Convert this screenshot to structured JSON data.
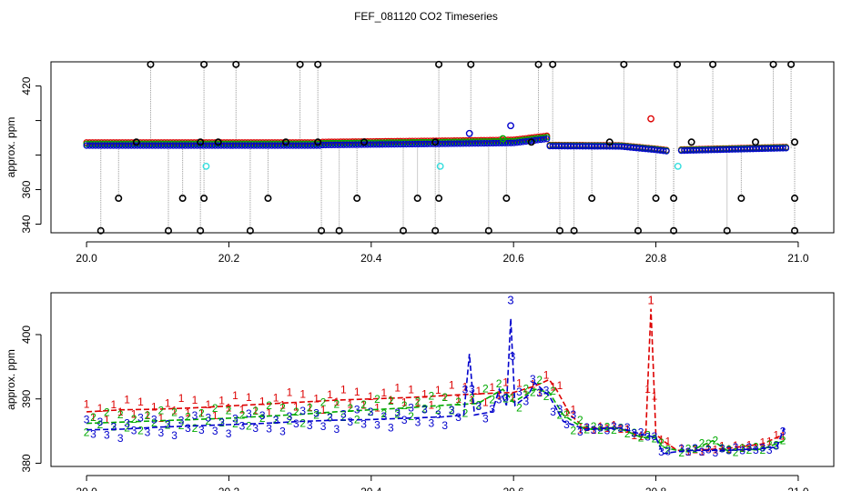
{
  "title": "FEF_081120  CO2 Timeseries",
  "colors": {
    "series1": "#dd0000",
    "series2": "#00aa00",
    "series3": "#0000cc",
    "outlier": "#000000",
    "flagged": "#33dddd",
    "line": "#999999"
  },
  "chart_data": [
    {
      "type": "scatter",
      "ylabel": "approx. ppm",
      "xlim": [
        19.95,
        21.05
      ],
      "ylim": [
        335,
        434
      ],
      "xticks": [
        "20.0",
        "20.2",
        "20.4",
        "20.6",
        "20.8",
        "21.0"
      ],
      "xtick_values": [
        20.0,
        20.2,
        20.4,
        20.6,
        20.8,
        21.0
      ],
      "yticks": [
        "340",
        "360",
        "380",
        "400",
        "420"
      ],
      "ytick_values": [
        340,
        360,
        380,
        400,
        420
      ],
      "ytick_labels_shown": [
        "340",
        "360",
        "",
        "",
        "420"
      ],
      "baseline_segments": [
        {
          "x": [
            20.0,
            20.33
          ],
          "y": [
            385.5,
            385.5
          ]
        },
        {
          "x": [
            20.33,
            20.5
          ],
          "y": [
            385.8,
            386.5
          ]
        },
        {
          "x": [
            20.5,
            20.6
          ],
          "y": [
            386.5,
            387.0
          ]
        },
        {
          "x": [
            20.6,
            20.65
          ],
          "y": [
            387.0,
            389.5
          ]
        },
        {
          "x": [
            20.65,
            20.75
          ],
          "y": [
            385.2,
            385.0
          ]
        },
        {
          "x": [
            20.75,
            20.8
          ],
          "y": [
            385.0,
            383.0
          ]
        },
        {
          "x": [
            20.8,
            20.82
          ],
          "y": [
            383.0,
            382.0
          ]
        },
        {
          "x": [
            20.83,
            20.98
          ],
          "y": [
            382.5,
            384.0
          ]
        }
      ],
      "outlier_high": [
        20.09,
        20.165,
        20.21,
        20.3,
        20.325,
        20.495,
        20.54,
        20.635,
        20.655,
        20.755,
        20.83,
        20.88,
        20.965,
        20.99
      ],
      "outlier_low": [
        20.02,
        20.115,
        20.16,
        20.23,
        20.33,
        20.355,
        20.445,
        20.49,
        20.565,
        20.665,
        20.685,
        20.775,
        20.825,
        20.9,
        20.995
      ],
      "outlier_mid_low": [
        20.045,
        20.135,
        20.165,
        20.255,
        20.38,
        20.465,
        20.495,
        20.59,
        20.71,
        20.8,
        20.825,
        20.92,
        20.995
      ],
      "outlier_mid_high": [
        20.07,
        20.16,
        20.185,
        20.28,
        20.325,
        20.39,
        20.49,
        20.625,
        20.735,
        20.85,
        20.94,
        20.995
      ],
      "colored_points": [
        {
          "series": 3,
          "x": 20.538,
          "y": 392.5
        },
        {
          "series": 3,
          "x": 20.596,
          "y": 397
        },
        {
          "series": 2,
          "x": 20.585,
          "y": 389.5
        },
        {
          "series": 1,
          "x": 20.793,
          "y": 401
        },
        {
          "series": 4,
          "x": 20.168,
          "y": 373.5
        },
        {
          "series": 4,
          "x": 20.497,
          "y": 373.5
        },
        {
          "series": 4,
          "x": 20.831,
          "y": 373.5
        }
      ]
    },
    {
      "type": "line",
      "ylabel": "approx. ppm",
      "xlim": [
        19.95,
        21.05
      ],
      "ylim": [
        379.5,
        406.5
      ],
      "xticks": [
        "20.0",
        "20.2",
        "20.4",
        "20.6",
        "20.8",
        "21.0"
      ],
      "xtick_values": [
        20.0,
        20.2,
        20.4,
        20.6,
        20.8,
        21.0
      ],
      "yticks": [
        "380",
        "390",
        "400"
      ],
      "ytick_values": [
        380,
        390,
        400
      ],
      "x_range": [
        20.0,
        20.98
      ],
      "series": [
        {
          "marker": "1",
          "points": [
            [
              20.0,
              388.0
            ],
            [
              20.05,
              388.3
            ],
            [
              20.1,
              388.4
            ],
            [
              20.15,
              388.6
            ],
            [
              20.2,
              388.9
            ],
            [
              20.25,
              389.2
            ],
            [
              20.3,
              389.5
            ],
            [
              20.35,
              389.8
            ],
            [
              20.4,
              390.0
            ],
            [
              20.45,
              390.2
            ],
            [
              20.5,
              390.5
            ],
            [
              20.55,
              390.8
            ],
            [
              20.6,
              391.0
            ],
            [
              20.63,
              392.0
            ],
            [
              20.65,
              393.0
            ],
            [
              20.66,
              391.5
            ],
            [
              20.68,
              387.5
            ],
            [
              20.7,
              385.5
            ],
            [
              20.75,
              385.5
            ],
            [
              20.78,
              384.0
            ],
            [
              20.786,
              385.0
            ],
            [
              20.79,
              396.0
            ],
            [
              20.793,
              404.0
            ],
            [
              20.796,
              396.0
            ],
            [
              20.8,
              384.5
            ],
            [
              20.81,
              383.5
            ],
            [
              20.83,
              382.0
            ],
            [
              20.85,
              382.0
            ],
            [
              20.9,
              382.3
            ],
            [
              20.95,
              383.0
            ],
            [
              20.98,
              384.5
            ]
          ]
        },
        {
          "marker": "2",
          "points": [
            [
              20.0,
              386.2
            ],
            [
              20.05,
              386.4
            ],
            [
              20.1,
              386.6
            ],
            [
              20.15,
              386.8
            ],
            [
              20.2,
              387.0
            ],
            [
              20.25,
              387.3
            ],
            [
              20.3,
              387.6
            ],
            [
              20.35,
              388.0
            ],
            [
              20.4,
              388.3
            ],
            [
              20.45,
              388.6
            ],
            [
              20.5,
              389.0
            ],
            [
              20.55,
              389.3
            ],
            [
              20.585,
              391.5
            ],
            [
              20.6,
              389.5
            ],
            [
              20.63,
              391.5
            ],
            [
              20.65,
              391.0
            ],
            [
              20.67,
              387.5
            ],
            [
              20.7,
              385.3
            ],
            [
              20.75,
              385.4
            ],
            [
              20.78,
              384.0
            ],
            [
              20.8,
              384.0
            ],
            [
              20.81,
              382.5
            ],
            [
              20.83,
              382.0
            ],
            [
              20.85,
              382.0
            ],
            [
              20.88,
              383.5
            ],
            [
              20.9,
              382.0
            ],
            [
              20.95,
              382.2
            ],
            [
              20.98,
              383.5
            ]
          ]
        },
        {
          "marker": "3",
          "points": [
            [
              20.0,
              385.2
            ],
            [
              20.05,
              385.3
            ],
            [
              20.1,
              385.6
            ],
            [
              20.15,
              385.8
            ],
            [
              20.2,
              386.0
            ],
            [
              20.25,
              386.2
            ],
            [
              20.3,
              386.5
            ],
            [
              20.35,
              386.7
            ],
            [
              20.4,
              386.8
            ],
            [
              20.45,
              387.0
            ],
            [
              20.5,
              387.2
            ],
            [
              20.53,
              387.5
            ],
            [
              20.538,
              397.0
            ],
            [
              20.545,
              387.5
            ],
            [
              20.57,
              388.0
            ],
            [
              20.58,
              391.5
            ],
            [
              20.59,
              389.0
            ],
            [
              20.596,
              402.5
            ],
            [
              20.602,
              389.0
            ],
            [
              20.62,
              390.5
            ],
            [
              20.63,
              392.5
            ],
            [
              20.65,
              390.5
            ],
            [
              20.67,
              386.5
            ],
            [
              20.7,
              385.3
            ],
            [
              20.75,
              385.5
            ],
            [
              20.78,
              384.5
            ],
            [
              20.8,
              384.0
            ],
            [
              20.81,
              381.5
            ],
            [
              20.83,
              381.8
            ],
            [
              20.85,
              382.0
            ],
            [
              20.9,
              382.0
            ],
            [
              20.95,
              382.3
            ],
            [
              20.97,
              382.5
            ],
            [
              20.98,
              385.5
            ]
          ]
        }
      ],
      "peak_labels": [
        {
          "marker": "3",
          "x": 20.596,
          "y": 405.3
        },
        {
          "marker": "1",
          "x": 20.793,
          "y": 405.3
        }
      ]
    }
  ]
}
